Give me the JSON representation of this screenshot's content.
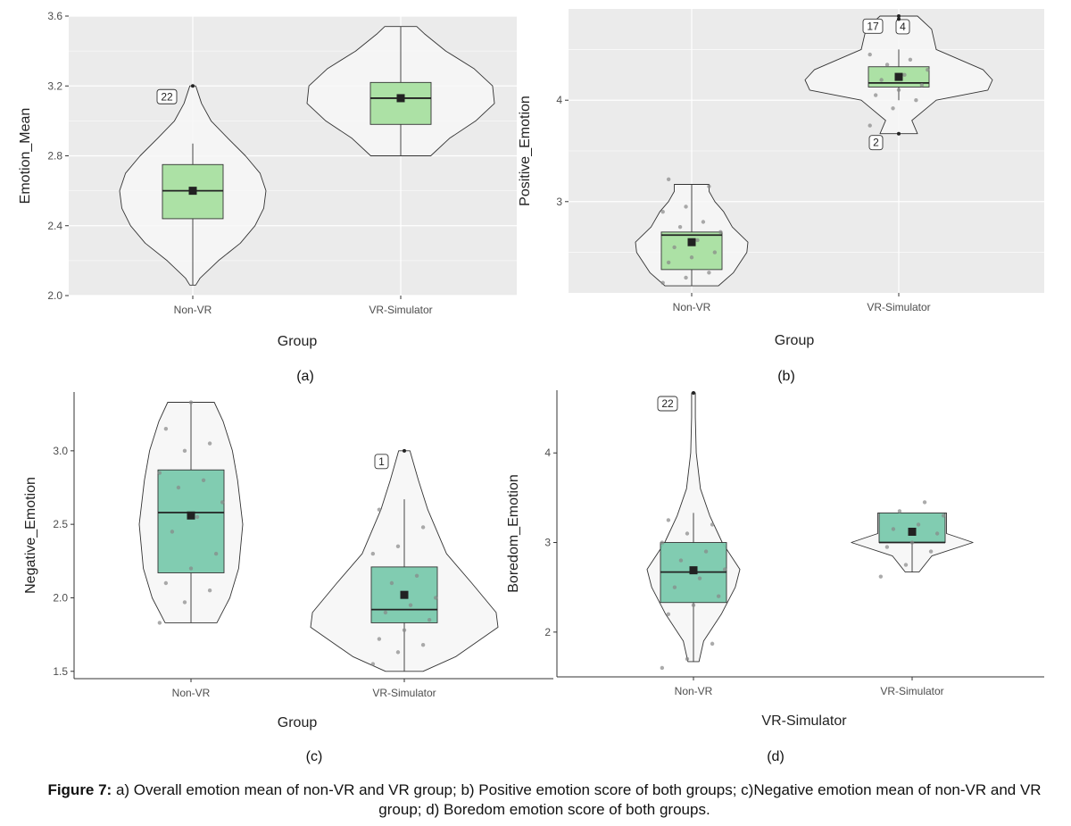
{
  "caption": {
    "label": "Figure 7:",
    "text": "a) Overall emotion mean of non-VR and VR group; b) Positive emotion score of both groups; c)Negative emotion mean of non-VR and VR group; d) Boredom emotion score of both groups."
  },
  "colors": {
    "panel_gray": "#ebebeb",
    "grid_white": "#ffffff",
    "violin_fill": "#f7f7f7",
    "box_light_green": "#a8dfa0",
    "box_teal": "#7ac9ad",
    "mean_marker": "#222222",
    "jitter_point": "#888888"
  },
  "chart_data": [
    {
      "id": "a",
      "panel_label": "(a)",
      "type": "violin-box",
      "theme": "gray",
      "xlabel": "Group",
      "ylabel": "Emotion_Mean",
      "ylim": [
        2.0,
        3.6
      ],
      "yticks": [
        2.0,
        2.4,
        2.8,
        3.2,
        3.6
      ],
      "ytick_labels": [
        "2.0",
        "2.4",
        "2.8",
        "3.2",
        "3.6"
      ],
      "categories": [
        "Non-VR",
        "VR-Simulator"
      ],
      "groups": [
        {
          "name": "Non-VR",
          "q1": 2.44,
          "median": 2.6,
          "q3": 2.75,
          "mean": 2.6,
          "whisker_low": 2.06,
          "whisker_high": 2.87,
          "violin": [
            [
              2.06,
              0.04
            ],
            [
              2.1,
              0.1
            ],
            [
              2.2,
              0.35
            ],
            [
              2.3,
              0.65
            ],
            [
              2.4,
              0.85
            ],
            [
              2.5,
              0.97
            ],
            [
              2.6,
              1.0
            ],
            [
              2.7,
              0.92
            ],
            [
              2.8,
              0.72
            ],
            [
              2.9,
              0.48
            ],
            [
              3.0,
              0.25
            ],
            [
              3.1,
              0.12
            ],
            [
              3.2,
              0.04
            ]
          ],
          "points": [],
          "outliers": [
            {
              "value": 3.2,
              "label": "22"
            }
          ]
        },
        {
          "name": "VR-Simulator",
          "q1": 2.98,
          "median": 3.13,
          "q3": 3.22,
          "mean": 3.13,
          "whisker_low": 2.8,
          "whisker_high": 3.54,
          "violin": [
            [
              2.8,
              0.32
            ],
            [
              2.9,
              0.52
            ],
            [
              3.0,
              0.8
            ],
            [
              3.1,
              1.0
            ],
            [
              3.2,
              0.98
            ],
            [
              3.3,
              0.78
            ],
            [
              3.4,
              0.48
            ],
            [
              3.5,
              0.25
            ],
            [
              3.54,
              0.17
            ]
          ],
          "points": [],
          "outliers": []
        }
      ]
    },
    {
      "id": "b",
      "panel_label": "(b)",
      "type": "violin-box",
      "theme": "gray",
      "xlabel": "Group",
      "ylabel": "Positive_Emotion",
      "ylim": [
        2.1,
        4.9
      ],
      "yticks": [
        3,
        4
      ],
      "ytick_labels": [
        "3",
        "4"
      ],
      "categories": [
        "Non-VR",
        "VR-Simulator"
      ],
      "groups": [
        {
          "name": "Non-VR",
          "q1": 2.33,
          "median": 2.67,
          "q3": 2.7,
          "mean": 2.6,
          "whisker_low": 2.17,
          "whisker_high": 3.17,
          "violin": [
            [
              2.17,
              0.46
            ],
            [
              2.3,
              0.72
            ],
            [
              2.5,
              0.95
            ],
            [
              2.6,
              0.97
            ],
            [
              2.75,
              0.7
            ],
            [
              2.9,
              0.55
            ],
            [
              3.0,
              0.4
            ],
            [
              3.1,
              0.3
            ],
            [
              3.17,
              0.3
            ]
          ],
          "points": [
            2.2,
            2.25,
            2.3,
            2.4,
            2.45,
            2.5,
            2.55,
            2.62,
            2.7,
            2.75,
            2.8,
            2.9,
            2.95,
            3.15,
            3.22
          ],
          "outliers": []
        },
        {
          "name": "VR-Simulator",
          "q1": 4.13,
          "median": 4.17,
          "q3": 4.33,
          "mean": 4.23,
          "whisker_low": 4.0,
          "whisker_high": 4.5,
          "violin": [
            [
              3.67,
              0.2
            ],
            [
              3.8,
              0.14
            ],
            [
              4.0,
              0.4
            ],
            [
              4.1,
              0.95
            ],
            [
              4.2,
              1.0
            ],
            [
              4.3,
              0.9
            ],
            [
              4.5,
              0.4
            ],
            [
              4.7,
              0.35
            ],
            [
              4.83,
              0.2
            ]
          ],
          "points": [
            3.75,
            3.92,
            4.0,
            4.05,
            4.1,
            4.15,
            4.2,
            4.25,
            4.3,
            4.35,
            4.4,
            4.45
          ],
          "outliers": [
            {
              "value": 4.83,
              "label": "4"
            },
            {
              "value": 4.8,
              "label": "17"
            },
            {
              "value": 3.67,
              "label": "2"
            }
          ]
        }
      ]
    },
    {
      "id": "c",
      "panel_label": "(c)",
      "type": "violin-box",
      "theme": "classic",
      "xlabel": "Group",
      "ylabel": "Negative_Emotion",
      "ylim": [
        1.45,
        3.4
      ],
      "yticks": [
        1.5,
        2.0,
        2.5,
        3.0
      ],
      "ytick_labels": [
        "1.5",
        "2.0",
        "2.5",
        "3.0"
      ],
      "categories": [
        "Non-VR",
        "VR-Simulator"
      ],
      "groups": [
        {
          "name": "Non-VR",
          "q1": 2.17,
          "median": 2.58,
          "q3": 2.87,
          "mean": 2.56,
          "whisker_low": 1.83,
          "whisker_high": 3.33,
          "violin": [
            [
              1.83,
              0.5
            ],
            [
              2.0,
              0.75
            ],
            [
              2.2,
              0.92
            ],
            [
              2.5,
              1.0
            ],
            [
              2.8,
              0.9
            ],
            [
              3.0,
              0.8
            ],
            [
              3.2,
              0.62
            ],
            [
              3.33,
              0.45
            ]
          ],
          "points": [
            1.83,
            1.97,
            2.05,
            2.1,
            2.2,
            2.3,
            2.45,
            2.55,
            2.65,
            2.75,
            2.8,
            2.85,
            3.0,
            3.05,
            3.15,
            3.33
          ],
          "outliers": []
        },
        {
          "name": "VR-Simulator",
          "q1": 1.83,
          "median": 1.92,
          "q3": 2.21,
          "mean": 2.02,
          "whisker_low": 1.5,
          "whisker_high": 2.67,
          "violin": [
            [
              1.5,
              0.2
            ],
            [
              1.6,
              0.55
            ],
            [
              1.8,
              1.0
            ],
            [
              1.9,
              0.98
            ],
            [
              2.1,
              0.72
            ],
            [
              2.3,
              0.45
            ],
            [
              2.6,
              0.25
            ],
            [
              2.8,
              0.15
            ],
            [
              3.0,
              0.06
            ]
          ],
          "points": [
            1.55,
            1.63,
            1.68,
            1.72,
            1.78,
            1.85,
            1.9,
            1.95,
            2.0,
            2.1,
            2.15,
            2.3,
            2.35,
            2.48,
            2.6
          ],
          "outliers": [
            {
              "value": 3.0,
              "label": "1"
            }
          ]
        }
      ]
    },
    {
      "id": "d",
      "panel_label": "(d)",
      "type": "violin-box",
      "theme": "classic",
      "xlabel": "VR-Simulator",
      "ylabel": "Boredom_Emotion",
      "ylim": [
        1.5,
        4.7
      ],
      "yticks": [
        2,
        3,
        4
      ],
      "ytick_labels": [
        "2",
        "3",
        "4"
      ],
      "categories": [
        "Non-VR",
        "VR-Simulator"
      ],
      "groups": [
        {
          "name": "Non-VR",
          "q1": 2.33,
          "median": 2.67,
          "q3": 3.0,
          "mean": 2.69,
          "whisker_low": 1.67,
          "whisker_high": 3.33,
          "violin": [
            [
              1.67,
              0.12
            ],
            [
              1.9,
              0.22
            ],
            [
              2.2,
              0.6
            ],
            [
              2.5,
              0.9
            ],
            [
              2.7,
              1.0
            ],
            [
              3.0,
              0.62
            ],
            [
              3.3,
              0.35
            ],
            [
              3.6,
              0.15
            ],
            [
              4.0,
              0.06
            ],
            [
              4.4,
              0.04
            ],
            [
              4.67,
              0.04
            ]
          ],
          "points": [
            1.6,
            1.7,
            1.87,
            2.2,
            2.3,
            2.4,
            2.5,
            2.6,
            2.7,
            2.8,
            2.9,
            3.0,
            3.1,
            3.2,
            3.25
          ],
          "outliers": [
            {
              "value": 4.67,
              "label": "22"
            }
          ]
        },
        {
          "name": "VR-Simulator",
          "q1": 3.0,
          "median": 3.0,
          "q3": 3.33,
          "mean": 3.12,
          "whisker_low": 2.67,
          "whisker_high": 3.33,
          "violin": [
            [
              2.67,
              0.07
            ],
            [
              2.85,
              0.2
            ],
            [
              3.0,
              0.62
            ],
            [
              3.1,
              0.35
            ],
            [
              3.2,
              0.35
            ],
            [
              3.3,
              0.35
            ],
            [
              3.33,
              0.35
            ]
          ],
          "points": [
            2.62,
            2.75,
            2.9,
            2.95,
            3.0,
            3.1,
            3.15,
            3.2,
            3.3,
            3.35,
            3.45
          ],
          "outliers": []
        }
      ]
    }
  ]
}
